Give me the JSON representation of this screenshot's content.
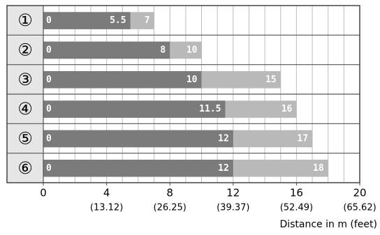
{
  "chart_data": {
    "type": "range-bar",
    "categories": [
      "①",
      "②",
      "③",
      "④",
      "⑤",
      "⑥"
    ],
    "starts": [
      0,
      0,
      0,
      0,
      0,
      0
    ],
    "series": [
      {
        "color": "#b9b9b9",
        "values": [
          7,
          10,
          15,
          16,
          17,
          18
        ]
      },
      {
        "color": "#7b7b7b",
        "values": [
          5.5,
          8,
          10,
          11.5,
          12,
          12
        ]
      }
    ],
    "xlim": [
      0,
      20
    ],
    "xticks": [
      0,
      4,
      8,
      12,
      16,
      20
    ],
    "xtick_sublabels": [
      null,
      "(13.12)",
      "(26.25)",
      "(39.37)",
      "(52.49)",
      "(65.62)"
    ],
    "x_label": "Distance in m (feet)",
    "grid": true,
    "grid_step": 1
  }
}
